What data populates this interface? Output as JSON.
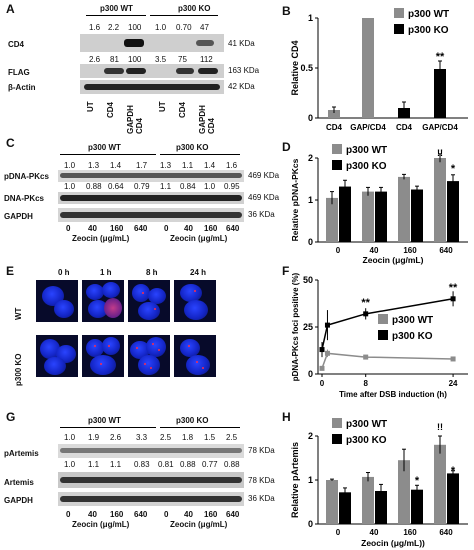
{
  "panels": {
    "A": {
      "letter": "A",
      "group_wt": "p300 WT",
      "group_ko": "p300 KO",
      "cd4_nums": [
        "1.6",
        "2.2",
        "100",
        "1.0",
        "0.70",
        "47"
      ],
      "flag_nums": [
        "2.6",
        "81",
        "100",
        "3.5",
        "75",
        "112"
      ],
      "rows": [
        "CD4",
        "FLAG",
        "β-Actin"
      ],
      "markers": [
        "41 KDa",
        "163 KDa",
        "42 KDa"
      ],
      "lanes": [
        "UT",
        "CD4",
        "GAPDH CD4",
        "UT",
        "CD4",
        "GAPDH CD4"
      ]
    },
    "C": {
      "letter": "C",
      "group_wt": "p300 WT",
      "group_ko": "p300 KO",
      "p_nums": [
        "1.0",
        "1.3",
        "1.4",
        "1.7",
        "1.3",
        "1.1",
        "1.4",
        "1.6"
      ],
      "d_nums": [
        "1.0",
        "0.88",
        "0.64",
        "0.79",
        "1.1",
        "0.84",
        "1.0",
        "0.95"
      ],
      "rows": [
        "pDNA-PKcs",
        "DNA-PKcs",
        "GAPDH"
      ],
      "markers": [
        "469 KDa",
        "469 KDa",
        "36 KDa"
      ],
      "doses": [
        "0",
        "40",
        "160",
        "640",
        "0",
        "40",
        "160",
        "640"
      ],
      "xlabel": "Zeocin (μg/mL)"
    },
    "E": {
      "letter": "E",
      "times": [
        "0 h",
        "1 h",
        "8 h",
        "24 h"
      ],
      "rows": [
        "WT",
        "p300 KO"
      ]
    },
    "G": {
      "letter": "G",
      "group_wt": "p300 WT",
      "group_ko": "p300 KO",
      "p_nums": [
        "1.0",
        "1.9",
        "2.6",
        "3.3",
        "2.5",
        "1.8",
        "1.5",
        "2.5"
      ],
      "a_nums": [
        "1.0",
        "1.1",
        "1.1",
        "0.83",
        "0.81",
        "0.88",
        "0.77",
        "0.88"
      ],
      "rows": [
        "pArtemis",
        "Artemis",
        "GAPDH"
      ],
      "markers": [
        "78 KDa",
        "78 KDa",
        "36 KDa"
      ],
      "doses": [
        "0",
        "40",
        "160",
        "640",
        "0",
        "40",
        "160",
        "640"
      ],
      "xlabel": "Zeocin (μg/mL)"
    }
  },
  "legend": {
    "wt": "p300 WT",
    "ko": "p300 KO"
  },
  "colors": {
    "wt": "#8c8c8c",
    "ko": "#000000"
  },
  "chart_data": [
    {
      "panel": "B",
      "type": "bar",
      "ylabel": "Relative CD4",
      "ylim": [
        0,
        1
      ],
      "yticks": [
        "0",
        "0.5",
        "1"
      ],
      "categories": [
        "CD4",
        "GAP/CD4",
        "CD4",
        "GAP/CD4"
      ],
      "bars": [
        {
          "category": "CD4",
          "series": "p300 WT",
          "value": 0.08,
          "err": 0.03
        },
        {
          "category": "GAP/CD4",
          "series": "p300 WT",
          "value": 1.0,
          "err": 0
        },
        {
          "category": "CD4",
          "series": "p300 KO",
          "value": 0.1,
          "err": 0.06
        },
        {
          "category": "GAP/CD4",
          "series": "p300 KO",
          "value": 0.49,
          "err": 0.08
        }
      ],
      "annotations": [
        "**"
      ]
    },
    {
      "panel": "D",
      "type": "bar",
      "ylabel": "Relative pDNA-PKcs",
      "xlabel": "Zeocin (μg/mL)",
      "ylim": [
        0,
        2
      ],
      "yticks": [
        "0",
        "1",
        "2"
      ],
      "categories": [
        "0",
        "40",
        "160",
        "640"
      ],
      "series": [
        {
          "name": "p300 WT",
          "values": [
            1.05,
            1.2,
            1.55,
            2.0
          ],
          "err": [
            0.15,
            0.1,
            0.06,
            0.1
          ]
        },
        {
          "name": "p300 KO",
          "values": [
            1.32,
            1.2,
            1.25,
            1.45
          ],
          "err": [
            0.15,
            0.1,
            0.08,
            0.15
          ]
        }
      ],
      "annotations": [
        "!!",
        "*"
      ]
    },
    {
      "panel": "F",
      "type": "line",
      "ylabel": "pDNA-PKcs foci positive (%)",
      "xlabel": "Time after DSB induction (h)",
      "ylim": [
        0,
        50
      ],
      "yticks": [
        "0",
        "25",
        "50"
      ],
      "xticks": [
        "0",
        "8",
        "24"
      ],
      "series": [
        {
          "name": "p300 WT",
          "x": [
            0,
            1,
            8,
            24
          ],
          "y": [
            3,
            11,
            9,
            8
          ],
          "err": [
            1,
            2,
            1,
            1
          ]
        },
        {
          "name": "p300 KO",
          "x": [
            0,
            1,
            8,
            24
          ],
          "y": [
            13,
            26,
            32,
            40
          ],
          "err": [
            4,
            8,
            3,
            4
          ]
        }
      ],
      "annotations": [
        "**",
        "**"
      ]
    },
    {
      "panel": "H",
      "type": "bar",
      "ylabel": "Relative pArtemis",
      "xlabel": "Zeocin (μg/mL))",
      "ylim": [
        0,
        2
      ],
      "yticks": [
        "0",
        "1",
        "2"
      ],
      "categories": [
        "0",
        "40",
        "160",
        "640"
      ],
      "series": [
        {
          "name": "p300 WT",
          "values": [
            1.0,
            1.07,
            1.45,
            1.8
          ],
          "err": [
            0.02,
            0.1,
            0.25,
            0.2
          ]
        },
        {
          "name": "p300 KO",
          "values": [
            0.72,
            0.75,
            0.78,
            1.15
          ],
          "err": [
            0.1,
            0.15,
            0.1,
            0.06
          ]
        }
      ],
      "annotations": [
        "*",
        "*",
        "!!",
        "*"
      ]
    }
  ]
}
